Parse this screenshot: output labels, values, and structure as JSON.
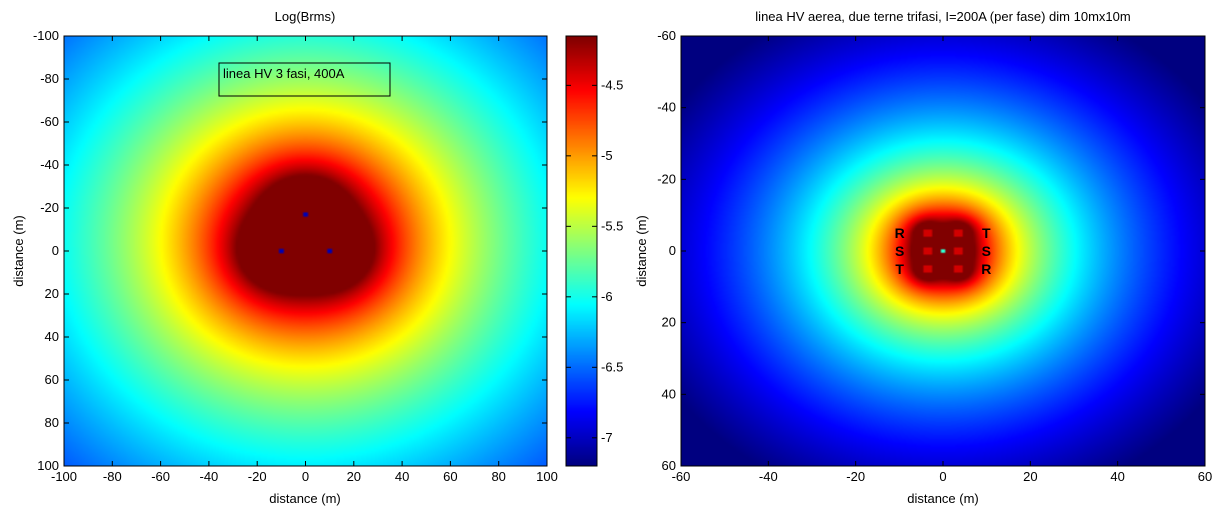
{
  "chart_data": [
    {
      "type": "heatmap",
      "title": "Log(Brms)",
      "xlabel": "distance (m)",
      "ylabel": "distance (m)",
      "xlim": [
        -100,
        100
      ],
      "ylim": [
        -100,
        100
      ],
      "y_reversed": true,
      "x_ticks": [
        -100,
        -80,
        -60,
        -40,
        -20,
        0,
        20,
        40,
        60,
        80,
        100
      ],
      "y_ticks": [
        -100,
        -80,
        -60,
        -40,
        -20,
        0,
        20,
        40,
        60,
        80,
        100
      ],
      "colormap": "jet",
      "clim": [
        -7.2,
        -4.15
      ],
      "colorbar_ticks": [
        -4.5,
        -5,
        -5.5,
        -6,
        -6.5,
        -7
      ],
      "annotation": "linea HV 3 fasi, 400A",
      "sources": [
        {
          "x": 0,
          "y": -17
        },
        {
          "x": -10,
          "y": 0
        },
        {
          "x": 10,
          "y": 0
        }
      ]
    },
    {
      "type": "heatmap",
      "title": "linea HV aerea, due terne trifasi, I=200A (per fase) dim 10mx10m",
      "xlabel": "distance (m)",
      "ylabel": "distance (m)",
      "xlim": [
        -60,
        60
      ],
      "ylim": [
        -60,
        60
      ],
      "y_reversed": true,
      "x_ticks": [
        -60,
        -40,
        -20,
        0,
        20,
        40,
        60
      ],
      "y_ticks": [
        -60,
        -40,
        -20,
        0,
        20,
        40,
        60
      ],
      "colormap": "jet",
      "sources": [
        {
          "x": -3.5,
          "y": -5,
          "label": "R"
        },
        {
          "x": -3.5,
          "y": 0,
          "label": "S"
        },
        {
          "x": -3.5,
          "y": 5,
          "label": "T"
        },
        {
          "x": 3.5,
          "y": -5,
          "label": "T"
        },
        {
          "x": 3.5,
          "y": 0,
          "label": "S"
        },
        {
          "x": 3.5,
          "y": 5,
          "label": "R"
        }
      ]
    }
  ]
}
